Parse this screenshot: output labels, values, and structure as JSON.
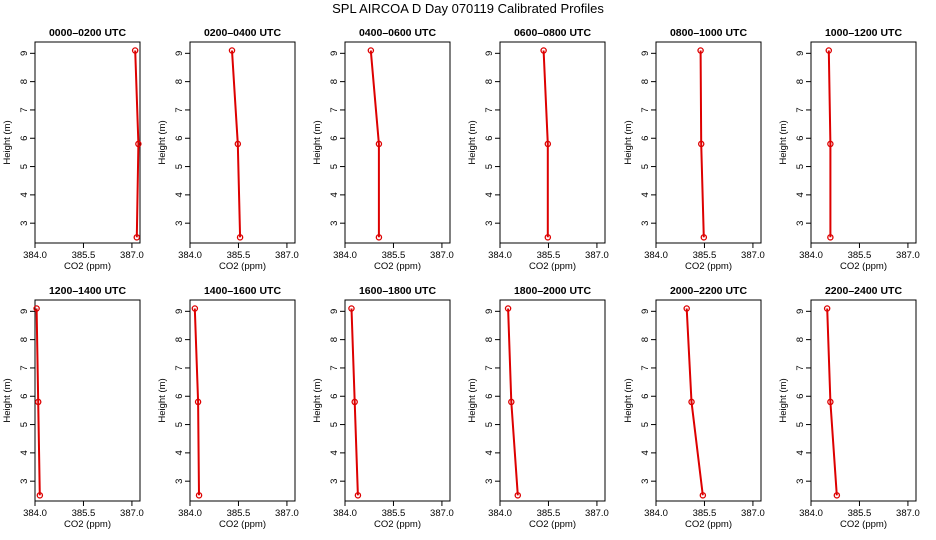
{
  "figure": {
    "title": "SPL AIRCOA D  Day 070119  Calibrated Profiles",
    "line_color": "#dd0000",
    "marker_color": "#dd0000"
  },
  "chart_data": [
    {
      "type": "line",
      "title": "0000–0200 UTC",
      "xlabel": "CO2 (ppm)",
      "ylabel": "Height (m)",
      "xlim": [
        384.0,
        387.25
      ],
      "ylim": [
        2.3,
        9.4
      ],
      "xticks": [
        "384.0",
        "385.5",
        "387.0"
      ],
      "yticks": [
        "3",
        "4",
        "5",
        "6",
        "7",
        "8",
        "9"
      ],
      "series": [
        {
          "x": [
            387.1,
            387.2,
            387.15
          ],
          "y": [
            9.1,
            5.8,
            2.5
          ]
        }
      ]
    },
    {
      "type": "line",
      "title": "0200–0400 UTC",
      "xlabel": "CO2 (ppm)",
      "ylabel": "Height (m)",
      "xlim": [
        384.0,
        387.25
      ],
      "ylim": [
        2.3,
        9.4
      ],
      "xticks": [
        "384.0",
        "385.5",
        "387.0"
      ],
      "yticks": [
        "3",
        "4",
        "5",
        "6",
        "7",
        "8",
        "9"
      ],
      "series": [
        {
          "x": [
            385.3,
            385.48,
            385.55
          ],
          "y": [
            9.1,
            5.8,
            2.5
          ]
        }
      ]
    },
    {
      "type": "line",
      "title": "0400–0600 UTC",
      "xlabel": "CO2 (ppm)",
      "ylabel": "Height (m)",
      "xlim": [
        384.0,
        387.25
      ],
      "ylim": [
        2.3,
        9.4
      ],
      "xticks": [
        "384.0",
        "385.5",
        "387.0"
      ],
      "yticks": [
        "3",
        "4",
        "5",
        "6",
        "7",
        "8",
        "9"
      ],
      "series": [
        {
          "x": [
            384.8,
            385.05,
            385.05
          ],
          "y": [
            9.1,
            5.8,
            2.5
          ]
        }
      ]
    },
    {
      "type": "line",
      "title": "0600–0800 UTC",
      "xlabel": "CO2 (ppm)",
      "ylabel": "Height (m)",
      "xlim": [
        384.0,
        387.25
      ],
      "ylim": [
        2.3,
        9.4
      ],
      "xticks": [
        "384.0",
        "385.5",
        "387.0"
      ],
      "yticks": [
        "3",
        "4",
        "5",
        "6",
        "7",
        "8",
        "9"
      ],
      "series": [
        {
          "x": [
            385.35,
            385.48,
            385.48
          ],
          "y": [
            9.1,
            5.8,
            2.5
          ]
        }
      ]
    },
    {
      "type": "line",
      "title": "0800–1000 UTC",
      "xlabel": "CO2 (ppm)",
      "ylabel": "Height (m)",
      "xlim": [
        384.0,
        387.25
      ],
      "ylim": [
        2.3,
        9.4
      ],
      "xticks": [
        "384.0",
        "385.5",
        "387.0"
      ],
      "yticks": [
        "3",
        "4",
        "5",
        "6",
        "7",
        "8",
        "9"
      ],
      "series": [
        {
          "x": [
            385.38,
            385.4,
            385.48
          ],
          "y": [
            9.1,
            5.8,
            2.5
          ]
        }
      ]
    },
    {
      "type": "line",
      "title": "1000–1200 UTC",
      "xlabel": "CO2 (ppm)",
      "ylabel": "Height (m)",
      "xlim": [
        384.0,
        387.25
      ],
      "ylim": [
        2.3,
        9.4
      ],
      "xticks": [
        "384.0",
        "385.5",
        "387.0"
      ],
      "yticks": [
        "3",
        "4",
        "5",
        "6",
        "7",
        "8",
        "9"
      ],
      "series": [
        {
          "x": [
            384.55,
            384.6,
            384.6
          ],
          "y": [
            9.1,
            5.8,
            2.5
          ]
        }
      ]
    },
    {
      "type": "line",
      "title": "1200–1400 UTC",
      "xlabel": "CO2 (ppm)",
      "ylabel": "Height (m)",
      "xlim": [
        384.0,
        387.25
      ],
      "ylim": [
        2.3,
        9.4
      ],
      "xticks": [
        "384.0",
        "385.5",
        "387.0"
      ],
      "yticks": [
        "3",
        "4",
        "5",
        "6",
        "7",
        "8",
        "9"
      ],
      "series": [
        {
          "x": [
            384.05,
            384.1,
            384.15
          ],
          "y": [
            9.1,
            5.8,
            2.5
          ]
        }
      ]
    },
    {
      "type": "line",
      "title": "1400–1600 UTC",
      "xlabel": "CO2 (ppm)",
      "ylabel": "Height (m)",
      "xlim": [
        384.0,
        387.25
      ],
      "ylim": [
        2.3,
        9.4
      ],
      "xticks": [
        "384.0",
        "385.5",
        "387.0"
      ],
      "yticks": [
        "3",
        "4",
        "5",
        "6",
        "7",
        "8",
        "9"
      ],
      "series": [
        {
          "x": [
            384.15,
            384.25,
            384.28
          ],
          "y": [
            9.1,
            5.8,
            2.5
          ]
        }
      ]
    },
    {
      "type": "line",
      "title": "1600–1800 UTC",
      "xlabel": "CO2 (ppm)",
      "ylabel": "Height (m)",
      "xlim": [
        384.0,
        387.25
      ],
      "ylim": [
        2.3,
        9.4
      ],
      "xticks": [
        "384.0",
        "385.5",
        "387.0"
      ],
      "yticks": [
        "3",
        "4",
        "5",
        "6",
        "7",
        "8",
        "9"
      ],
      "series": [
        {
          "x": [
            384.2,
            384.3,
            384.4
          ],
          "y": [
            9.1,
            5.8,
            2.5
          ]
        }
      ]
    },
    {
      "type": "line",
      "title": "1800–2000 UTC",
      "xlabel": "CO2 (ppm)",
      "ylabel": "Height (m)",
      "xlim": [
        384.0,
        387.25
      ],
      "ylim": [
        2.3,
        9.4
      ],
      "xticks": [
        "384.0",
        "385.5",
        "387.0"
      ],
      "yticks": [
        "3",
        "4",
        "5",
        "6",
        "7",
        "8",
        "9"
      ],
      "series": [
        {
          "x": [
            384.25,
            384.35,
            384.55
          ],
          "y": [
            9.1,
            5.8,
            2.5
          ]
        }
      ]
    },
    {
      "type": "line",
      "title": "2000–2200 UTC",
      "xlabel": "CO2 (ppm)",
      "ylabel": "Height (m)",
      "xlim": [
        384.0,
        387.25
      ],
      "ylim": [
        2.3,
        9.4
      ],
      "xticks": [
        "384.0",
        "385.5",
        "387.0"
      ],
      "yticks": [
        "3",
        "4",
        "5",
        "6",
        "7",
        "8",
        "9"
      ],
      "series": [
        {
          "x": [
            384.95,
            385.1,
            385.45
          ],
          "y": [
            9.1,
            5.8,
            2.5
          ]
        }
      ]
    },
    {
      "type": "line",
      "title": "2200–2400 UTC",
      "xlabel": "CO2 (ppm)",
      "ylabel": "Height (m)",
      "xlim": [
        384.0,
        387.25
      ],
      "ylim": [
        2.3,
        9.4
      ],
      "xticks": [
        "384.0",
        "385.5",
        "387.0"
      ],
      "yticks": [
        "3",
        "4",
        "5",
        "6",
        "7",
        "8",
        "9"
      ],
      "series": [
        {
          "x": [
            384.5,
            384.6,
            384.8
          ],
          "y": [
            9.1,
            5.8,
            2.5
          ]
        }
      ]
    }
  ]
}
